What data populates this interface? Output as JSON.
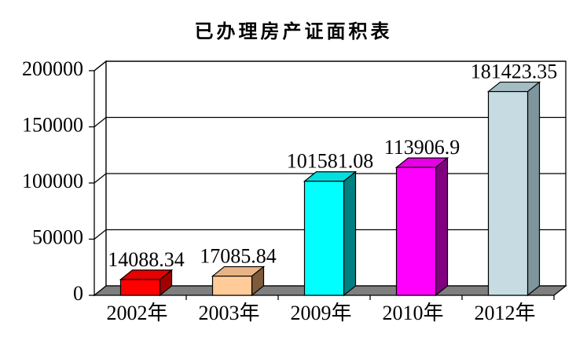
{
  "title": "已办理房产证面积表",
  "chart_data": {
    "type": "bar",
    "projection": "3d",
    "title": "已办理房产证面积表",
    "categories": [
      "2002年",
      "2003年",
      "2009年",
      "2010年",
      "2012年"
    ],
    "values": [
      14088.34,
      17085.84,
      101581.08,
      113906.9,
      181423.35
    ],
    "data_labels": [
      "14088.34",
      "17085.84",
      "101581.08",
      "113906.9",
      "181423.35"
    ],
    "series": [
      {
        "name": "已办理房产证面积",
        "values": [
          14088.34,
          17085.84,
          101581.08,
          113906.9,
          181423.35
        ]
      }
    ],
    "bar_colors": [
      {
        "front": "#FF0000",
        "top": "#E60000",
        "side": "#A30000"
      },
      {
        "front": "#FFCC99",
        "top": "#E8B485",
        "side": "#7D5B3B"
      },
      {
        "front": "#00FFFF",
        "top": "#00E0E0",
        "side": "#008080"
      },
      {
        "front": "#FF00FF",
        "top": "#E600E6",
        "side": "#800080"
      },
      {
        "front": "#C6DBE2",
        "top": "#A4BDC4",
        "side": "#7E959D"
      }
    ],
    "xlabel": "",
    "ylabel": "",
    "ylim": [
      0,
      200000
    ],
    "ytick_interval": 50000,
    "ytick_labels": [
      "0",
      "50000",
      "100000",
      "150000",
      "200000"
    ],
    "grid": true,
    "legend": false,
    "wall_color": "#FFFFFF",
    "floor_color": "#7F7F7F",
    "line_color": "#000000",
    "text_color": "#000000",
    "background_color": "#FFFFFF"
  }
}
